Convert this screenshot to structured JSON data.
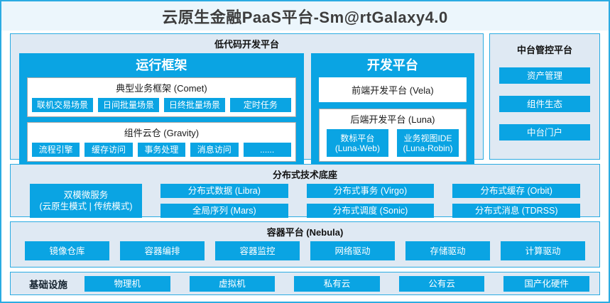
{
  "colors": {
    "accent": "#0aa4e3",
    "border": "#2aabe2",
    "panel_bg": "#dfe9f3",
    "title_bg": "#ecf6fc"
  },
  "title": "云原生金融PaaS平台-Sm@rtGalaxy4.0",
  "lowcode": {
    "label": "低代码开发平台",
    "runtime": {
      "title": "运行框架",
      "comet": {
        "header": "典型业务框架 (Comet)",
        "items": [
          "联机交易场景",
          "日间批量场景",
          "日终批量场景",
          "定时任务"
        ]
      },
      "gravity": {
        "header": "组件云仓 (Gravity)",
        "items": [
          "流程引擎",
          "缓存访问",
          "事务处理",
          "消息访问",
          "......"
        ]
      }
    },
    "dev": {
      "title": "开发平台",
      "vela": {
        "header": "前端开发平台 (Vela)"
      },
      "luna": {
        "header": "后端开发平台 (Luna)",
        "items": [
          {
            "line1": "数标平台",
            "line2": "(Luna-Web)"
          },
          {
            "line1": "业务视图IDE",
            "line2": "(Luna-Robin)"
          }
        ]
      }
    }
  },
  "mgmt": {
    "title": "中台管控平台",
    "items": [
      "资产管理",
      "组件生态",
      "中台门户"
    ]
  },
  "distributed": {
    "title": "分布式技术底座",
    "dual": {
      "line1": "双模微服务",
      "line2": "(云原生模式 | 传统模式)"
    },
    "items": [
      "分布式数据 (Libra)",
      "分布式事务 (Virgo)",
      "分布式缓存 (Orbit)",
      "全局序列 (Mars)",
      "分布式调度 (Sonic)",
      "分布式消息 (TDRSS)"
    ]
  },
  "container": {
    "title": "容器平台 (Nebula)",
    "items": [
      "镜像仓库",
      "容器编排",
      "容器监控",
      "网络驱动",
      "存储驱动",
      "计算驱动"
    ]
  },
  "infra": {
    "label": "基础设施",
    "items": [
      "物理机",
      "虚拟机",
      "私有云",
      "公有云",
      "国产化硬件"
    ]
  }
}
